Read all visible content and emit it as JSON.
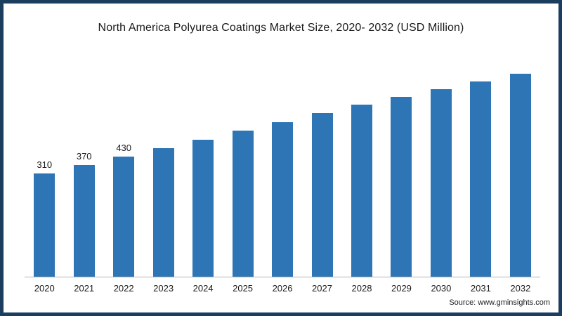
{
  "page": {
    "background_color": "#ffffff",
    "frame_border_color": "#1b3e5f"
  },
  "chart_data": {
    "type": "bar",
    "title": "North America Polyurea Coatings Market Size, 2020- 2032 (USD Million)",
    "categories": [
      "2020",
      "2021",
      "2022",
      "2023",
      "2024",
      "2025",
      "2026",
      "2027",
      "2028",
      "2029",
      "2030",
      "2031",
      "2032"
    ],
    "values": [
      310,
      370,
      430,
      490,
      550,
      615,
      675,
      740,
      800,
      855,
      910,
      965,
      1020
    ],
    "data_labels": [
      "310",
      "370",
      "430",
      "",
      "",
      "",
      "",
      "",
      "",
      "",
      "",
      "",
      ""
    ],
    "bar_color": "#2e75b6",
    "xlabel": "",
    "ylabel": "",
    "grid": false,
    "legend_position": "none",
    "y_axis_ticks_visible": false,
    "baseline_axis_visible": true
  },
  "footer": {
    "source_label": "Source: www.gminsights.com"
  }
}
